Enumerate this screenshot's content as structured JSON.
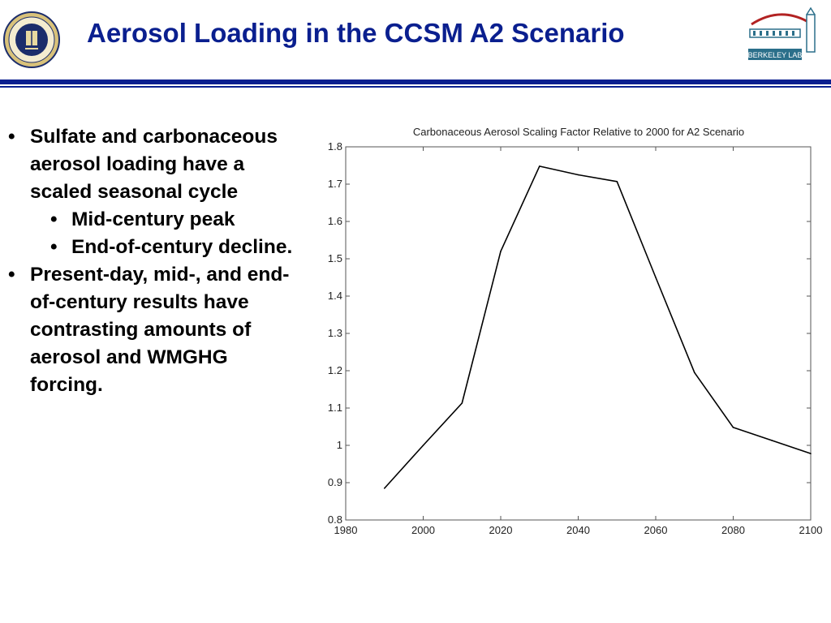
{
  "slide": {
    "title": "Aerosol Loading in the CCSM A2 Scenario",
    "accent_color": "#0a1f8f",
    "logos": {
      "left": "university-of-california-seal",
      "right": "berkeley-lab-logo",
      "right_text": "BERKELEY LAB",
      "seal_text": "THE UNIVERSITY OF CALIFORNIA 1868"
    }
  },
  "bullets": [
    {
      "text": "Sulfate and carbonaceous aerosol loading have a scaled seasonal cycle",
      "sub": [
        "Mid-century peak",
        "End-of-century decline."
      ]
    },
    {
      "text": "Present-day, mid-, and end-of-century results have contrasting amounts of aerosol and WMGHG forcing.",
      "sub": []
    }
  ],
  "chart_data": {
    "type": "line",
    "title": "Carbonaceous Aerosol Scaling Factor Relative to 2000 for A2 Scenario",
    "xlabel": "",
    "ylabel": "",
    "xlim": [
      1980,
      2100
    ],
    "ylim": [
      0.8,
      1.8
    ],
    "xticks": [
      "1980",
      "2000",
      "2020",
      "2040",
      "2060",
      "2080",
      "2100"
    ],
    "yticks": [
      "0.8",
      "0.9",
      "1",
      "1.1",
      "1.2",
      "1.3",
      "1.4",
      "1.5",
      "1.6",
      "1.7",
      "1.8"
    ],
    "grid": false,
    "line_color": "#000000",
    "series": [
      {
        "x": [
          1990,
          2000,
          2010,
          2020,
          2030,
          2040,
          2050,
          2060,
          2070,
          2080,
          2090,
          2100
        ],
        "values": [
          0.885,
          1.0,
          1.113,
          1.52,
          1.748,
          1.725,
          1.707,
          1.45,
          1.195,
          1.048,
          1.013,
          0.978
        ]
      }
    ]
  }
}
